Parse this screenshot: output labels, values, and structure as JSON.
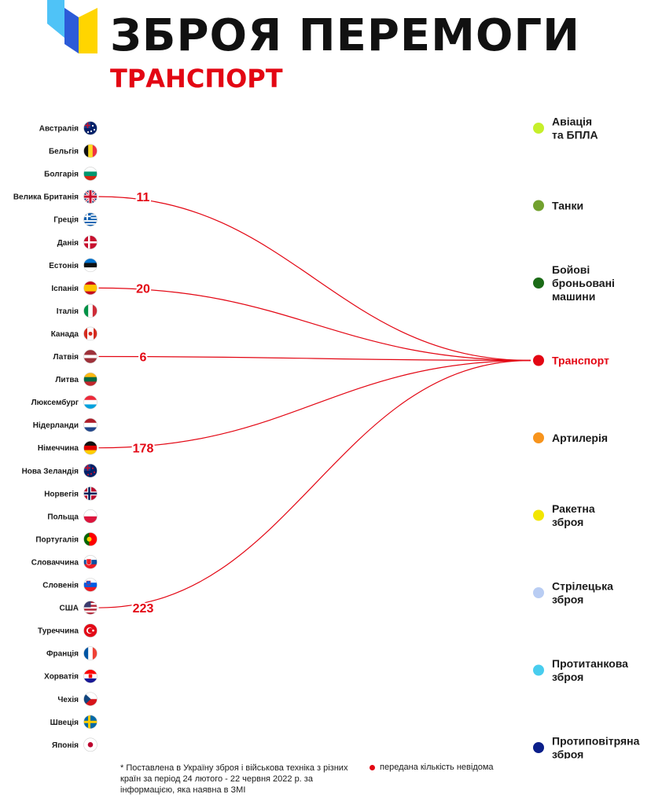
{
  "header": {
    "title": "ЗБРОЯ ПЕРЕМОГИ",
    "subtitle": "ТРАНСПОРТ"
  },
  "footnote": "* Поставлена в Україну зброя і військова техніка з різних країн за період 24 лютого - 22 червня 2022 р. за інформацією, яка наявна в ЗМІ",
  "legend_note": "передана кількість невідома",
  "colors": {
    "accent": "#e30613",
    "logo_blue": "#2c5bd8",
    "logo_yellow": "#ffd500",
    "logo_cyan": "#4fc3f7"
  },
  "chart_data": {
    "type": "flow",
    "target": "Транспорт",
    "countries": [
      {
        "name": "Австралія",
        "flag": "australia"
      },
      {
        "name": "Бельгія",
        "flag": "belgium"
      },
      {
        "name": "Болгарія",
        "flag": "bulgaria"
      },
      {
        "name": "Велика Британія",
        "flag": "uk"
      },
      {
        "name": "Греція",
        "flag": "greece"
      },
      {
        "name": "Данія",
        "flag": "denmark"
      },
      {
        "name": "Естонія",
        "flag": "estonia"
      },
      {
        "name": "Іспанія",
        "flag": "spain"
      },
      {
        "name": "Італія",
        "flag": "italy"
      },
      {
        "name": "Канада",
        "flag": "canada"
      },
      {
        "name": "Латвія",
        "flag": "latvia"
      },
      {
        "name": "Литва",
        "flag": "lithuania"
      },
      {
        "name": "Люксембург",
        "flag": "luxembourg"
      },
      {
        "name": "Нідерланди",
        "flag": "netherlands"
      },
      {
        "name": "Німеччина",
        "flag": "germany"
      },
      {
        "name": "Нова Зеландія",
        "flag": "new-zealand"
      },
      {
        "name": "Норвегія",
        "flag": "norway"
      },
      {
        "name": "Польща",
        "flag": "poland"
      },
      {
        "name": "Португалія",
        "flag": "portugal"
      },
      {
        "name": "Словаччина",
        "flag": "slovakia"
      },
      {
        "name": "Словенія",
        "flag": "slovenia"
      },
      {
        "name": "США",
        "flag": "usa"
      },
      {
        "name": "Туреччина",
        "flag": "turkey"
      },
      {
        "name": "Франція",
        "flag": "france"
      },
      {
        "name": "Хорватія",
        "flag": "croatia"
      },
      {
        "name": "Чехія",
        "flag": "czechia"
      },
      {
        "name": "Швеція",
        "flag": "sweden"
      },
      {
        "name": "Японія",
        "flag": "japan"
      }
    ],
    "categories": [
      {
        "name": "Авіація\nта БПЛА",
        "color": "#c6ef2b"
      },
      {
        "name": "Танки",
        "color": "#72a12e"
      },
      {
        "name": "Бойові\nброньовані\nмашини",
        "color": "#1b6b17"
      },
      {
        "name": "Транспорт",
        "color": "#e30613",
        "active": true
      },
      {
        "name": "Артилерія",
        "color": "#f7941d"
      },
      {
        "name": "Ракетна\nзброя",
        "color": "#f2e600"
      },
      {
        "name": "Стрілецька\nзброя",
        "color": "#b9cdf3"
      },
      {
        "name": "Протитанкова\nзброя",
        "color": "#48cdee"
      },
      {
        "name": "Протиповітряна\nзброя",
        "color": "#0b1f8a"
      }
    ],
    "flows": [
      {
        "country": "Велика Британія",
        "value": 11
      },
      {
        "country": "Іспанія",
        "value": 20
      },
      {
        "country": "Латвія",
        "value": 6
      },
      {
        "country": "Німеччина",
        "value": 178
      },
      {
        "country": "США",
        "value": 223
      }
    ]
  }
}
